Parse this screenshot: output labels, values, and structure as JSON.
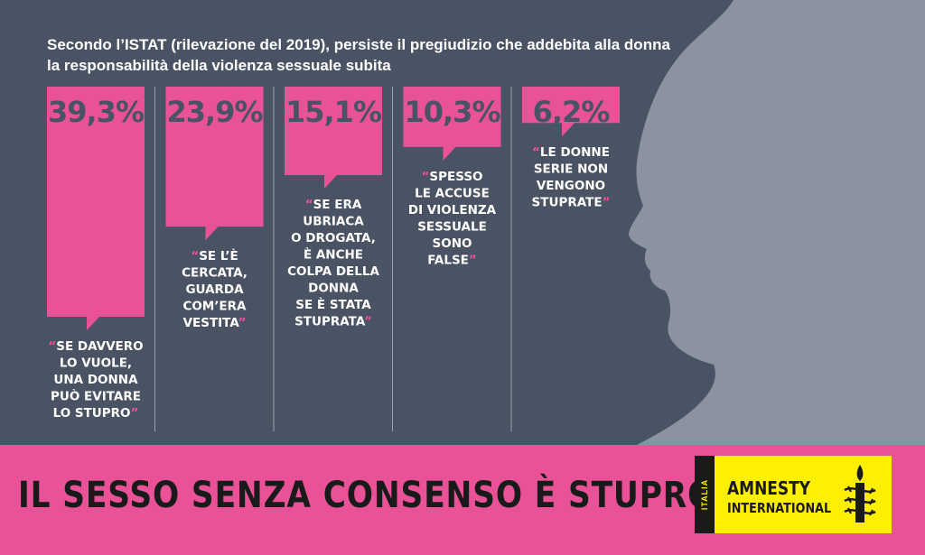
{
  "heading": {
    "line1": "Secondo l’ISTAT (rilevazione del 2019), persiste il pregiudizio che addebita alla donna",
    "line2": "la responsabilità della violenza sessuale subita"
  },
  "chart_data": {
    "type": "bar",
    "categories": [
      [
        "SE DAVVERO",
        "LO VUOLE,",
        "UNA DONNA",
        "PUÒ EVITARE",
        "LO STUPRO"
      ],
      [
        "SE L’È",
        "CERCATA,",
        "GUARDA",
        "COM’ERA",
        "VESTITA"
      ],
      [
        "SE ERA",
        "UBRIACA",
        "O DROGATA,",
        "È ANCHE",
        "COLPA DELLA",
        "DONNA",
        "SE È STATA",
        "STUPRATA"
      ],
      [
        "SPESSO",
        "LE ACCUSE",
        "DI VIOLENZA",
        "SESSUALE",
        "SONO",
        "FALSE"
      ],
      [
        "LE DONNE",
        "SERIE NON",
        "VENGONO",
        "STUPRATE"
      ]
    ],
    "values": [
      39.3,
      23.9,
      15.1,
      10.3,
      6.2
    ],
    "value_labels": [
      "39,3%",
      "23,9%",
      "15,1%",
      "10,3%",
      "6,2%"
    ],
    "ylim": [
      0,
      39.3
    ],
    "bar_color": "#ea5298",
    "title": "",
    "xlabel": "",
    "ylabel": ""
  },
  "footer": {
    "slogan": "IL SESSO SENZA CONSENSO È STUPRO!",
    "logo_country": "ITALIA",
    "logo_line1": "AMNESTY",
    "logo_line2": "INTERNATIONAL"
  },
  "colors": {
    "background": "#4a5363",
    "silhouette": "#8a939f",
    "pink": "#ea5298",
    "yellow": "#ffef00"
  }
}
